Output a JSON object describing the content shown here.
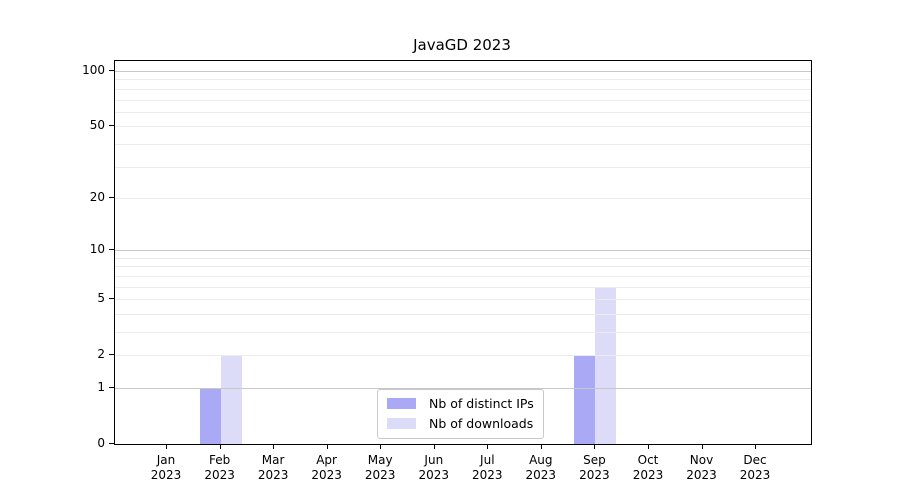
{
  "chart_data": {
    "type": "bar",
    "title": "JavaGD 2023",
    "months": [
      "Jan",
      "Feb",
      "Mar",
      "Apr",
      "May",
      "Jun",
      "Jul",
      "Aug",
      "Sep",
      "Oct",
      "Nov",
      "Dec"
    ],
    "year": "2023",
    "series": [
      {
        "name": "Nb of distinct IPs",
        "color": "#a9a9f6",
        "values": [
          0,
          1,
          0,
          0,
          0,
          0,
          0,
          0,
          2,
          0,
          0,
          0
        ]
      },
      {
        "name": "Nb of downloads",
        "color": "#dcdcf8",
        "values": [
          0,
          2,
          0,
          0,
          0,
          0,
          0,
          0,
          6,
          0,
          0,
          0
        ]
      }
    ],
    "yscale": "log1p",
    "yticks": [
      0,
      1,
      2,
      5,
      10,
      20,
      50,
      100
    ],
    "gridlines": {
      "major": [
        1,
        10,
        100
      ],
      "minor": [
        2,
        3,
        4,
        5,
        6,
        7,
        8,
        9,
        20,
        30,
        40,
        50,
        60,
        70,
        80,
        90
      ]
    },
    "ylim": [
      0,
      113
    ],
    "grid": true,
    "legend_position": "lower center"
  }
}
